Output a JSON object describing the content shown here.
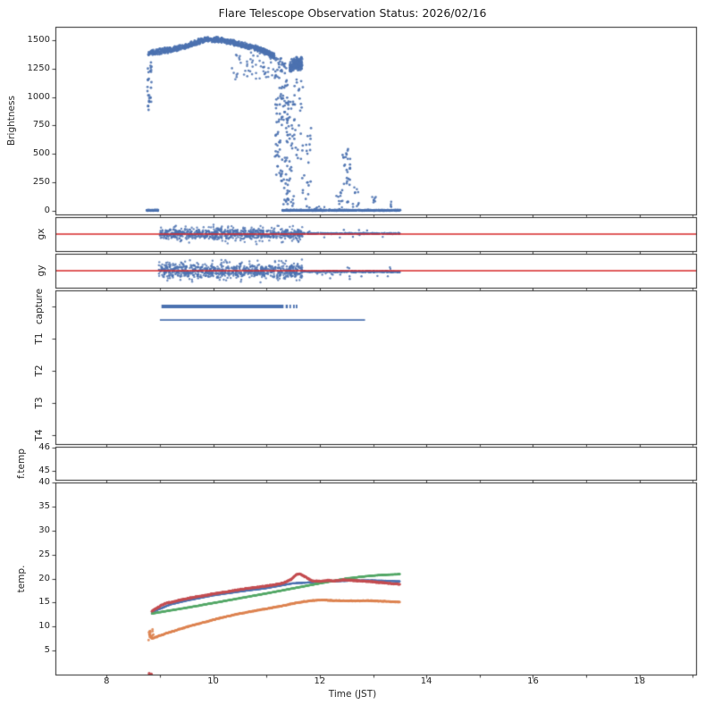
{
  "chart_data": {
    "type": "scatter",
    "title": "Flare Telescope Observation Status: 2026/02/16",
    "xlabel": "Time (JST)",
    "x": {
      "lim": [
        7.04,
        19.06
      ],
      "minor_ticks": [
        8,
        9,
        10,
        11,
        12,
        13,
        14,
        15,
        16,
        17,
        18,
        19
      ],
      "labeled_ticks": [
        8,
        10,
        12,
        14,
        16,
        18
      ]
    },
    "accent_colors": {
      "scatter_blue": "#4c72b0",
      "guide_red": "#d62728",
      "temp_red": "#c44e52",
      "temp_green": "#55a868",
      "temp_orange": "#dd8452"
    },
    "panels": [
      {
        "id": "brightness",
        "ylabel": "Brightness",
        "ylim": [
          -30,
          1615
        ],
        "yticks": [
          0,
          250,
          500,
          750,
          1000,
          1250,
          1500
        ],
        "series": [
          {
            "type": "cloud",
            "n": 780,
            "size": 1.4,
            "alpha": 0.9,
            "spread": 28,
            "base": [
              [
                8.78,
                1385
              ],
              [
                9.0,
                1400
              ],
              [
                9.2,
                1412
              ],
              [
                9.4,
                1432
              ],
              [
                9.6,
                1462
              ],
              [
                9.8,
                1498
              ],
              [
                10.0,
                1505
              ],
              [
                10.2,
                1492
              ],
              [
                10.45,
                1468
              ],
              [
                10.7,
                1440
              ],
              [
                10.95,
                1408
              ],
              [
                11.15,
                1352
              ]
            ]
          },
          {
            "type": "box",
            "n": 55,
            "size": 1.3,
            "alpha": 0.85,
            "t0": 10.35,
            "t1": 11.16,
            "v0": 1150,
            "v1": 1390
          },
          {
            "type": "box",
            "n": 24,
            "size": 1.4,
            "t0": 8.76,
            "t1": 8.85,
            "v0": 880,
            "v1": 1360
          },
          {
            "type": "points",
            "size": 1.6,
            "pts": [
              [
                8.78,
                920
              ],
              [
                8.8,
                958
              ]
            ]
          },
          {
            "type": "box",
            "n": 65,
            "size": 1.4,
            "t0": 11.16,
            "t1": 11.3,
            "v0": 250,
            "v1": 1340
          },
          {
            "type": "box",
            "n": 60,
            "size": 1.4,
            "t0": 11.28,
            "t1": 11.4,
            "v0": 0,
            "v1": 1310
          },
          {
            "type": "box",
            "n": 38,
            "size": 1.4,
            "t0": 11.38,
            "t1": 11.52,
            "v0": 0,
            "v1": 960
          },
          {
            "type": "cloud",
            "n": 150,
            "size": 1.5,
            "spread": 65,
            "base": [
              [
                11.44,
                1262
              ],
              [
                11.56,
                1298
              ],
              [
                11.67,
                1282
              ]
            ]
          },
          {
            "type": "box",
            "n": 26,
            "size": 1.4,
            "t0": 11.5,
            "t1": 11.7,
            "v0": 420,
            "v1": 1160
          },
          {
            "type": "box",
            "n": 22,
            "size": 1.4,
            "t0": 11.66,
            "t1": 11.84,
            "v0": 0,
            "v1": 820
          },
          {
            "type": "box",
            "n": 30,
            "size": 1.4,
            "t0": 12.42,
            "t1": 12.57,
            "v0": 60,
            "v1": 560
          },
          {
            "type": "box",
            "n": 8,
            "size": 1.3,
            "t0": 12.3,
            "t1": 12.41,
            "v0": 30,
            "v1": 170
          },
          {
            "type": "box",
            "n": 10,
            "size": 1.3,
            "t0": 12.62,
            "t1": 12.75,
            "v0": 30,
            "v1": 230
          },
          {
            "type": "box",
            "n": 7,
            "size": 1.3,
            "t0": 12.97,
            "t1": 13.09,
            "v0": 25,
            "v1": 130
          },
          {
            "type": "box",
            "n": 4,
            "size": 1.3,
            "t0": 13.28,
            "t1": 13.36,
            "v0": 20,
            "v1": 90
          },
          {
            "type": "cloud",
            "n": 100,
            "size": 1.3,
            "spread": 5,
            "base": [
              [
                8.75,
                6
              ],
              [
                8.97,
                6
              ]
            ]
          },
          {
            "type": "cloud",
            "n": 560,
            "size": 1.3,
            "spread": 5,
            "base": [
              [
                11.3,
                6
              ],
              [
                13.52,
                6
              ]
            ]
          },
          {
            "type": "box",
            "n": 14,
            "size": 1.2,
            "t0": 11.85,
            "t1": 12.45,
            "v0": 0,
            "v1": 40
          }
        ]
      },
      {
        "id": "gx",
        "ylabel": "gx",
        "ylim": [
          -3.2,
          3.2
        ],
        "yticks": [],
        "series": [
          {
            "type": "cloud",
            "n": 520,
            "size": 1.2,
            "alpha": 0.85,
            "spread": 1.05,
            "base": [
              [
                9.0,
                0.05
              ],
              [
                11.68,
                0.05
              ]
            ]
          },
          {
            "type": "cloud",
            "n": 240,
            "size": 1.2,
            "alpha": 0.8,
            "spread": 2.0,
            "base": [
              [
                9.0,
                0
              ],
              [
                11.68,
                0
              ]
            ]
          },
          {
            "type": "cloud",
            "n": 280,
            "size": 1.2,
            "spread": 0.13,
            "base": [
              [
                11.68,
                0.12
              ],
              [
                13.5,
                0.1
              ]
            ]
          },
          {
            "type": "box",
            "n": 12,
            "size": 1.2,
            "t0": 11.7,
            "t1": 13.45,
            "v0": -0.7,
            "v1": 0.9
          },
          {
            "type": "hline",
            "v": 0,
            "color": "#d62728",
            "lw": 1.4
          }
        ]
      },
      {
        "id": "gy",
        "ylabel": "gy",
        "ylim": [
          -3.2,
          3.2
        ],
        "yticks": [],
        "series": [
          {
            "type": "cloud",
            "n": 540,
            "size": 1.2,
            "alpha": 0.85,
            "spread": 1.35,
            "base": [
              [
                8.98,
                -0.1
              ],
              [
                11.68,
                -0.1
              ]
            ]
          },
          {
            "type": "cloud",
            "n": 260,
            "size": 1.2,
            "alpha": 0.8,
            "spread": 2.4,
            "base": [
              [
                8.98,
                0
              ],
              [
                11.68,
                0
              ]
            ]
          },
          {
            "type": "cloud",
            "n": 260,
            "size": 1.2,
            "spread": 0.16,
            "base": [
              [
                11.68,
                -0.15
              ],
              [
                13.5,
                -0.18
              ]
            ]
          },
          {
            "type": "box",
            "n": 22,
            "size": 1.2,
            "t0": 11.7,
            "t1": 13.45,
            "v0": -1.7,
            "v1": 0.7
          },
          {
            "type": "hline",
            "v": 0,
            "color": "#d62728",
            "lw": 1.4
          }
        ]
      },
      {
        "id": "status",
        "ylabel": null,
        "ylim": [
          -0.28,
          4.5
        ],
        "yticks": [],
        "category_ticks": [
          {
            "v": 4,
            "label": "capture"
          },
          {
            "v": 3,
            "label": "T1"
          },
          {
            "v": 2,
            "label": "T2"
          },
          {
            "v": 1,
            "label": "T3"
          },
          {
            "v": 0,
            "label": "T4"
          }
        ],
        "series": [
          {
            "type": "hseg",
            "v": 4,
            "lw": 4,
            "segs": [
              [
                9.03,
                11.32
              ],
              [
                11.36,
                11.4
              ],
              [
                11.43,
                11.46
              ],
              [
                11.5,
                11.53
              ],
              [
                11.55,
                11.58
              ]
            ]
          },
          {
            "type": "hseg",
            "v": 3.58,
            "lw": 1.6,
            "segs": [
              [
                9.0,
                12.85
              ]
            ]
          }
        ]
      },
      {
        "id": "ftemp",
        "ylabel": "f.temp",
        "ylim": [
          44.6,
          46.05
        ],
        "yticks": [
          45,
          46
        ],
        "series": []
      },
      {
        "id": "temp",
        "ylabel": "temp.",
        "ylim": [
          0,
          40
        ],
        "yticks": [
          5,
          10,
          15,
          20,
          25,
          30,
          35,
          40
        ],
        "series": [
          {
            "type": "curve",
            "color": "#4c72b0",
            "lw": 2.0,
            "noise": 0.05,
            "dot": 1.1,
            "pts": [
              [
                8.85,
                13.0
              ],
              [
                9.2,
                14.6
              ],
              [
                9.5,
                15.4
              ],
              [
                10.0,
                16.5
              ],
              [
                10.5,
                17.3
              ],
              [
                11.0,
                18.0
              ],
              [
                11.5,
                19.0
              ],
              [
                11.9,
                19.25
              ],
              [
                12.3,
                19.45
              ],
              [
                12.7,
                19.6
              ],
              [
                13.0,
                19.6
              ],
              [
                13.3,
                19.5
              ],
              [
                13.5,
                19.4
              ]
            ]
          },
          {
            "type": "curve",
            "color": "#55a868",
            "lw": 2.2,
            "noise": 0.04,
            "dot": 1.2,
            "pts": [
              [
                8.85,
                12.7
              ],
              [
                9.0,
                13.0
              ],
              [
                9.5,
                13.9
              ],
              [
                10.0,
                14.9
              ],
              [
                10.5,
                15.9
              ],
              [
                11.0,
                16.9
              ],
              [
                11.5,
                17.95
              ],
              [
                12.0,
                19.0
              ],
              [
                12.5,
                20.0
              ],
              [
                12.8,
                20.4
              ],
              [
                13.0,
                20.6
              ],
              [
                13.2,
                20.75
              ],
              [
                13.5,
                20.9
              ]
            ]
          },
          {
            "type": "curve",
            "color": "#c44e52",
            "lw": 1.5,
            "noise": 0.13,
            "dot": 1.4,
            "pts": [
              [
                8.85,
                13.2
              ],
              [
                9.0,
                14.2
              ],
              [
                9.1,
                14.8
              ],
              [
                9.3,
                15.3
              ],
              [
                9.5,
                15.8
              ],
              [
                9.7,
                16.2
              ],
              [
                9.9,
                16.6
              ],
              [
                10.1,
                17.0
              ],
              [
                10.3,
                17.3
              ],
              [
                10.5,
                17.7
              ],
              [
                10.7,
                18.0
              ],
              [
                10.9,
                18.3
              ],
              [
                11.1,
                18.6
              ],
              [
                11.3,
                19.0
              ],
              [
                11.45,
                19.7
              ],
              [
                11.55,
                20.7
              ],
              [
                11.62,
                21.0
              ],
              [
                11.75,
                20.2
              ],
              [
                11.85,
                19.5
              ],
              [
                12.0,
                19.4
              ],
              [
                12.15,
                19.6
              ],
              [
                12.3,
                19.5
              ],
              [
                12.45,
                19.7
              ],
              [
                12.6,
                19.6
              ],
              [
                12.75,
                19.5
              ],
              [
                12.9,
                19.4
              ],
              [
                13.1,
                19.2
              ],
              [
                13.3,
                19.0
              ],
              [
                13.5,
                18.8
              ]
            ]
          },
          {
            "type": "curve",
            "color": "#dd8452",
            "lw": 1.5,
            "noise": 0.1,
            "dot": 1.3,
            "pts": [
              [
                8.8,
                8.4
              ],
              [
                8.85,
                7.5
              ],
              [
                8.95,
                7.9
              ],
              [
                9.1,
                8.5
              ],
              [
                9.3,
                9.2
              ],
              [
                9.5,
                9.9
              ],
              [
                9.7,
                10.5
              ],
              [
                9.9,
                11.1
              ],
              [
                10.1,
                11.7
              ],
              [
                10.3,
                12.2
              ],
              [
                10.5,
                12.7
              ],
              [
                10.7,
                13.1
              ],
              [
                10.9,
                13.5
              ],
              [
                11.1,
                13.9
              ],
              [
                11.3,
                14.3
              ],
              [
                11.5,
                14.8
              ],
              [
                11.7,
                15.2
              ],
              [
                11.9,
                15.45
              ],
              [
                12.1,
                15.5
              ],
              [
                12.3,
                15.4
              ],
              [
                12.5,
                15.35
              ],
              [
                12.7,
                15.35
              ],
              [
                12.9,
                15.4
              ],
              [
                13.1,
                15.3
              ],
              [
                13.3,
                15.2
              ],
              [
                13.5,
                15.1
              ]
            ]
          },
          {
            "type": "box",
            "color": "#dd8452",
            "n": 16,
            "size": 1.4,
            "t0": 8.78,
            "t1": 8.88,
            "v0": 7.0,
            "v1": 9.4
          },
          {
            "type": "points",
            "color": "#c44e52",
            "size": 1.7,
            "pts": [
              [
                8.8,
                0.25
              ],
              [
                8.84,
                0.1
              ]
            ]
          }
        ]
      }
    ]
  }
}
